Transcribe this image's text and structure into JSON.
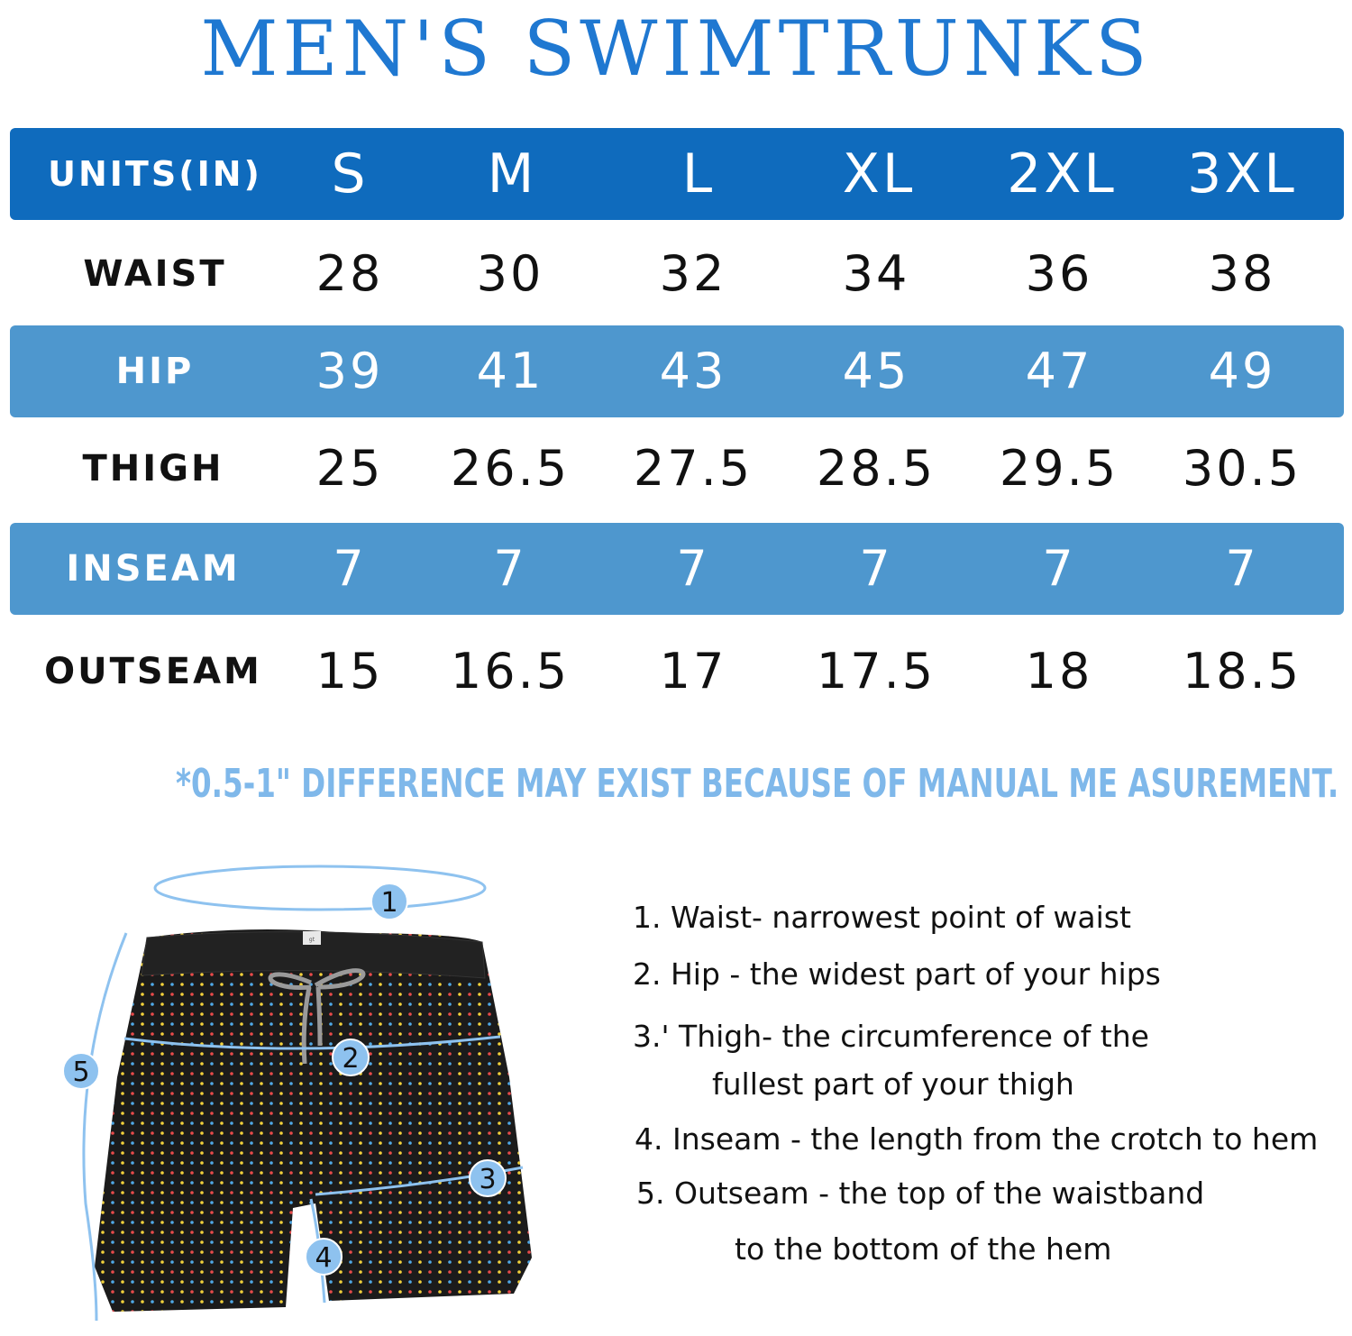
{
  "title": "MEN'S SWIMTRUNKS",
  "table": {
    "header_label": "UNITS(IN)",
    "sizes": [
      "S",
      "M",
      "L",
      "XL",
      "2XL",
      "3XL"
    ],
    "rows": [
      {
        "label": "WAIST",
        "values": [
          "28",
          "30",
          "32",
          "34",
          "36",
          "38"
        ]
      },
      {
        "label": "HIP",
        "values": [
          "39",
          "41",
          "43",
          "45",
          "47",
          "49"
        ]
      },
      {
        "label": "THIGH",
        "values": [
          "25",
          "26.5",
          "27.5",
          "28.5",
          "29.5",
          "30.5"
        ]
      },
      {
        "label": "INSEAM",
        "values": [
          "7",
          "7",
          "7",
          "7",
          "7",
          "7"
        ]
      },
      {
        "label": "OUTSEAM",
        "values": [
          "15",
          "16.5",
          "17",
          "17.5",
          "18",
          "18.5"
        ]
      }
    ]
  },
  "note": "*0.5-1\" DIFFERENCE MAY EXIST BECAUSE OF MANUAL ME ASUREMENT.",
  "diagram": {
    "markers": [
      "1",
      "2",
      "3",
      "4",
      "5"
    ],
    "tag": "gt"
  },
  "guide": {
    "line1": "1. Waist- narrowest point of waist",
    "line2": "2. Hip - the widest part of your hips",
    "line3a": "3.' Thigh- the circumference of the",
    "line3b": "fullest part of your thigh",
    "line4": "4. Inseam - the length from the crotch to hem",
    "line5a": "5. Outseam - the top of the waistband",
    "line5b": "to the bottom of the hem"
  },
  "colors": {
    "title": "#1f78d1",
    "header_band": "#0f6bbd",
    "light_band": "#4e97ce",
    "note": "#7fb8ea",
    "marker": "#8ec2ef"
  }
}
